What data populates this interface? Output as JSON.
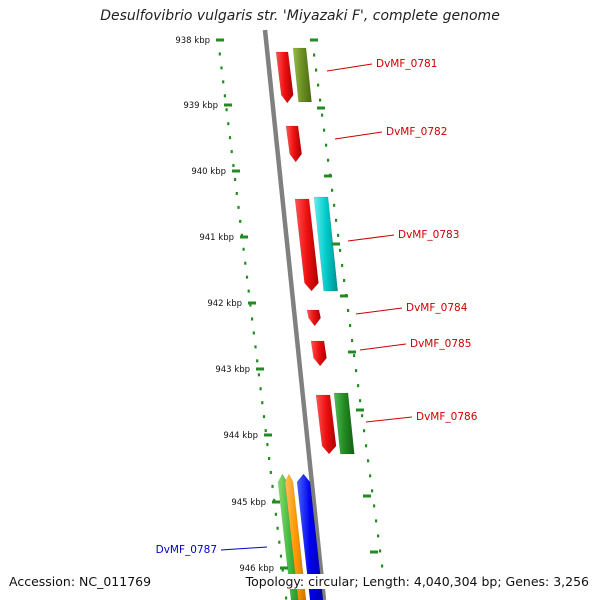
{
  "title": "Desulfovibrio vulgaris str. 'Miyazaki F', complete genome",
  "footer": {
    "accession": "Accession: NC_011769",
    "summary": "Topology: circular; Length: 4,040,304 bp; Genes: 3,256"
  },
  "ticks": [
    "938 kbp",
    "939 kbp",
    "940 kbp",
    "941 kbp",
    "942 kbp",
    "943 kbp",
    "944 kbp",
    "945 kbp",
    "946 kbp"
  ],
  "colors": {
    "red": "#ee1111",
    "olive": "#6b8e23",
    "cyan": "#00cccc",
    "green": "#228b22",
    "lightgreen": "#44bb44",
    "orange": "#ff9900",
    "blue": "#0000ee",
    "dots": "#228b22",
    "backbone": "#808080",
    "label_red": "#cc0000",
    "label_blue": "#0000cc"
  },
  "genes": [
    {
      "label": "DvMF_0781",
      "label_color": "label_red"
    },
    {
      "label": "DvMF_0782",
      "label_color": "label_red"
    },
    {
      "label": "DvMF_0783",
      "label_color": "label_red"
    },
    {
      "label": "DvMF_0784",
      "label_color": "label_red"
    },
    {
      "label": "DvMF_0785",
      "label_color": "label_red"
    },
    {
      "label": "DvMF_0786",
      "label_color": "label_red"
    },
    {
      "label": "DvMF_0787",
      "label_color": "label_blue"
    }
  ]
}
